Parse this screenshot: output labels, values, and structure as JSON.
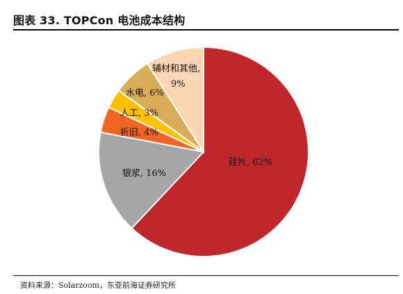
{
  "header": {
    "title": "图表 33. TOPCon 电池成本结构"
  },
  "footer": {
    "source": "资料来源：Solarzoom，东亚前海证券研究所"
  },
  "chart_data": {
    "type": "pie",
    "title": "图表 33. TOPCon 电池成本结构",
    "slices": [
      {
        "name": "硅片",
        "value": 62,
        "label": "硅片, 62%",
        "color": "#c0272d"
      },
      {
        "name": "银浆",
        "value": 16,
        "label": "银浆, 16%",
        "color": "#a6a6a6"
      },
      {
        "name": "折旧",
        "value": 4,
        "label": "折旧, 4%",
        "color": "#f26522"
      },
      {
        "name": "人工",
        "value": 3,
        "label": "人工, 3%",
        "color": "#ffc000"
      },
      {
        "name": "水电",
        "value": 6,
        "label": "水电, 6%",
        "color": "#d9ac5a"
      },
      {
        "name": "辅材和其他",
        "value": 9,
        "label_lines": [
          "辅材和其他,",
          "9%"
        ],
        "color": "#fcd5b5"
      }
    ]
  }
}
